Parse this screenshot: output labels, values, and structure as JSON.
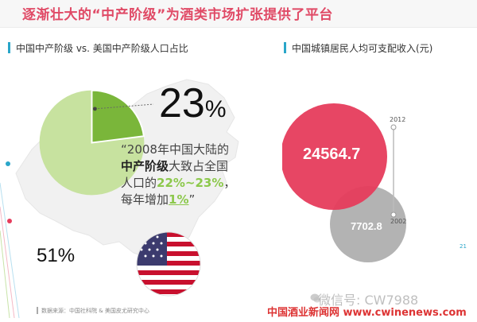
{
  "title": "逐渐壮大的“中产阶级”为酒类市场扩张提供了平台",
  "left": {
    "heading": "中国中产阶级 vs. 美国中产阶级人口占比",
    "china_pct": "23",
    "pct_sign": "%",
    "quote": {
      "line1": "“2008年中国大陆的",
      "highlight": "中产阶级",
      "line2_rest": "大致占全国",
      "line3_pre": "人口的",
      "range": "22%~23%",
      "line3_post": "，",
      "line4_pre": "每年增加",
      "increase": "1%",
      "line4_post": "”"
    },
    "us_pct": "51%",
    "source": "数据来源：中国社科院 & 美国皮尤研究中心"
  },
  "right": {
    "heading": "中国城镇居民人均可支配收入(元)",
    "value_2012": "24564.7",
    "value_2002": "7702.8",
    "year_2012": "2012",
    "year_2002": "2002",
    "page": "21"
  },
  "watermark": "微信号: CW7988",
  "footer_watermark": "中国酒业新闻网 www.cwinenews.com",
  "pie": {
    "share": 0.23
  },
  "colors": {
    "title": "#e04a66",
    "accent": "#2aa6c9",
    "pie_green": "#8cc84b",
    "bubble_red": "#e63c5c",
    "bubble_grey": "#b3b3b3"
  }
}
